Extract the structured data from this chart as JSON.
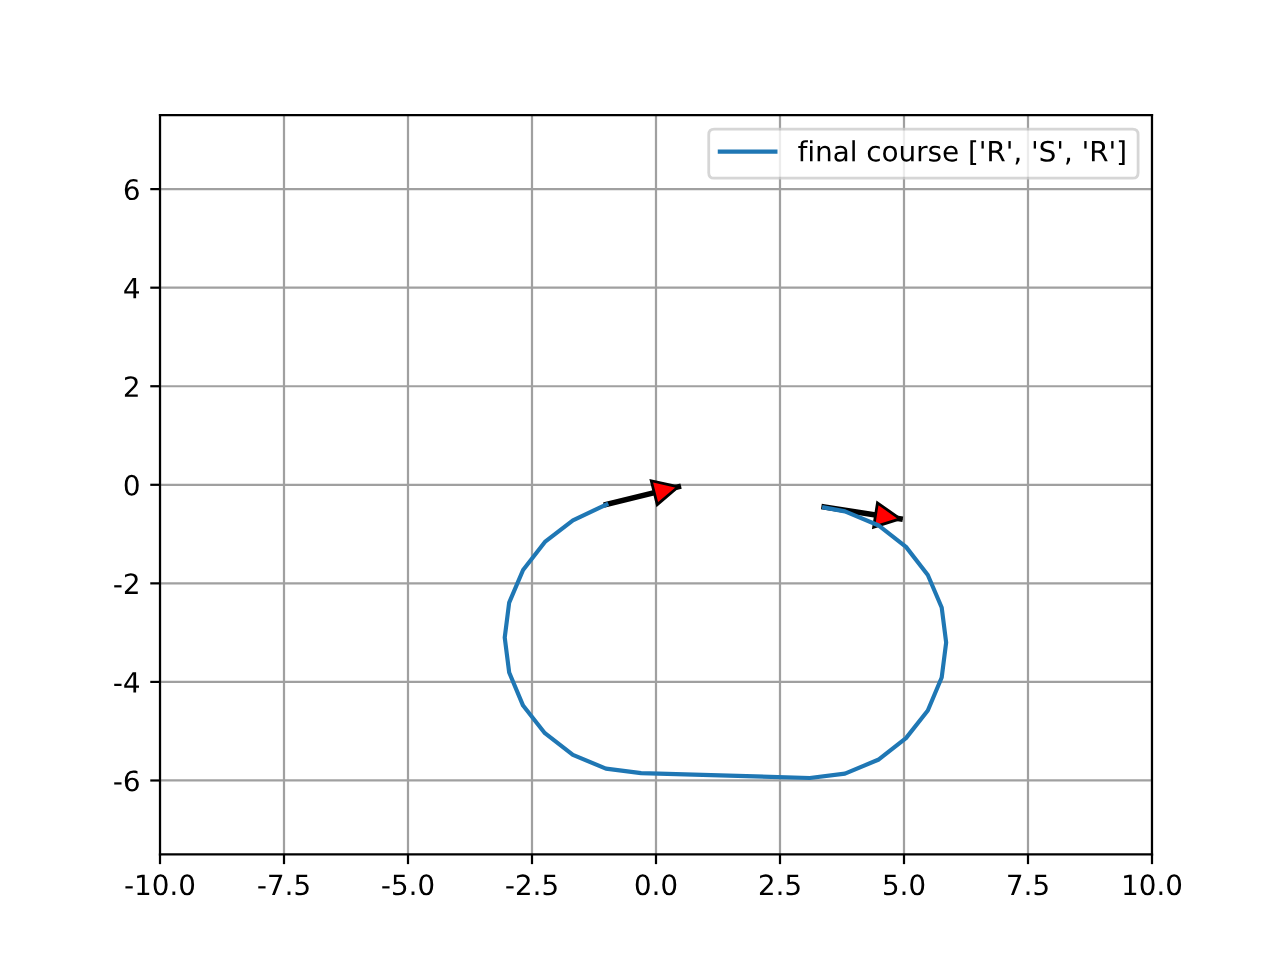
{
  "chart_data": {
    "type": "line",
    "xlim": [
      -10,
      10
    ],
    "ylim": [
      -7.5,
      7.5
    ],
    "xticks": [
      {
        "value": -10,
        "label": "-10.0"
      },
      -7.5,
      {
        "value": -5,
        "label": "-5.0"
      },
      -2.5,
      {
        "value": 0,
        "label": "0.0"
      },
      2.5,
      {
        "value": 5,
        "label": "5.0"
      },
      7.5,
      {
        "value": 10,
        "label": "10.0"
      }
    ],
    "yticks": [
      -6,
      -4,
      -2,
      0,
      2,
      4,
      6
    ],
    "grid": true,
    "legend": "top right",
    "series": [
      {
        "name": "final course ['R', 'S', 'R']",
        "color": "#1f77b4",
        "x": [
          -1.0,
          -1.675,
          -2.24,
          -2.68,
          -2.96,
          -3.05,
          -2.96,
          -2.68,
          -2.24,
          -1.675,
          -1.01,
          -0.3,
          3.1,
          3.81,
          4.48,
          5.04,
          5.48,
          5.76,
          5.85,
          5.76,
          5.48,
          5.04,
          4.48,
          3.81,
          3.39
        ],
        "values": [
          -0.4,
          -0.72,
          -1.16,
          -1.73,
          -2.39,
          -3.1,
          -3.81,
          -4.48,
          -5.04,
          -5.48,
          -5.76,
          -5.85,
          -5.95,
          -5.86,
          -5.58,
          -5.14,
          -4.58,
          -3.91,
          -3.2,
          -2.49,
          -1.83,
          -1.26,
          -0.82,
          -0.54,
          -0.46
        ]
      },
      {
        "color": "#000000",
        "x": [
          -1.0,
          0.45
        ],
        "values": [
          -0.4,
          -0.04
        ]
      },
      {
        "color": "#000000",
        "x": [
          3.39,
          4.92
        ],
        "values": [
          -0.45,
          -0.69
        ]
      }
    ]
  }
}
